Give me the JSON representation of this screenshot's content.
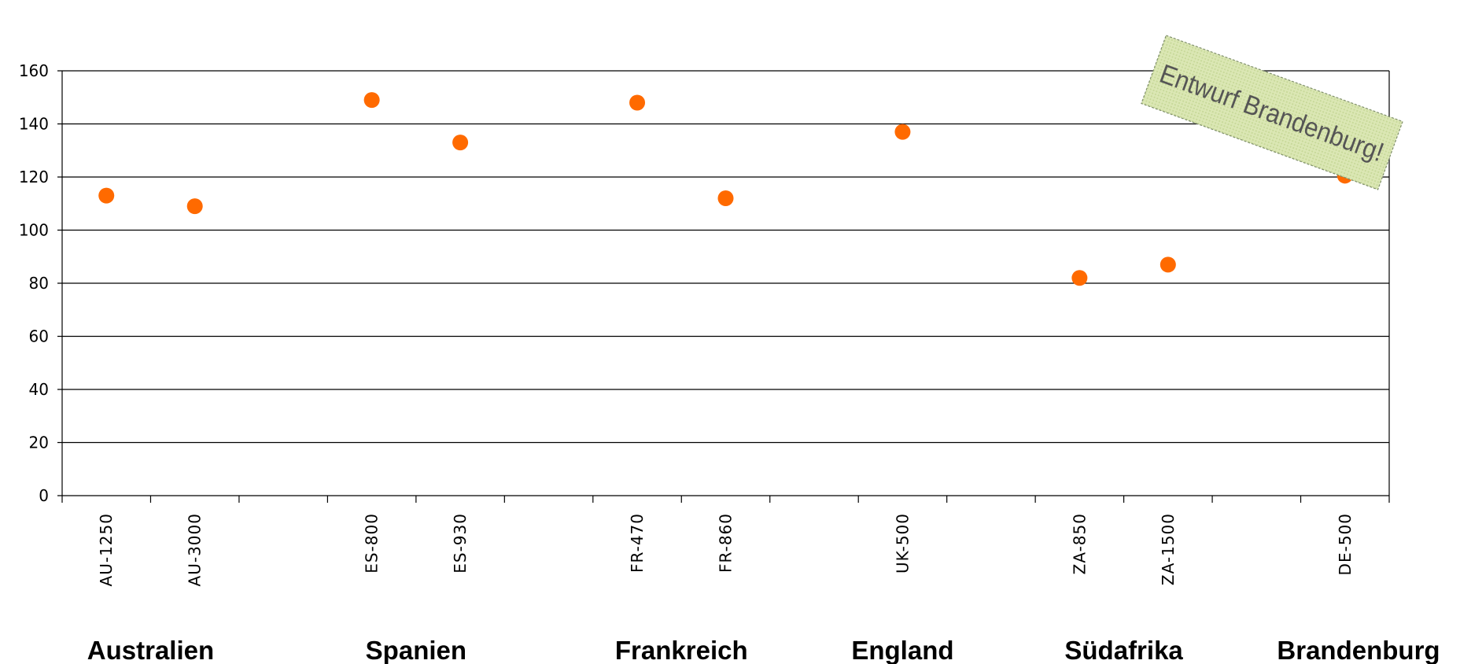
{
  "chart_data": {
    "type": "scatter",
    "categories": [
      {
        "label": "AU-1250",
        "value": 113
      },
      {
        "label": "AU-3000",
        "value": 109
      },
      {
        "label": "ES-800",
        "value": 149
      },
      {
        "label": "ES-930",
        "value": 133
      },
      {
        "label": "FR-470",
        "value": 148
      },
      {
        "label": "FR-860",
        "value": 112
      },
      {
        "label": "UK-500",
        "value": 137
      },
      {
        "label": "ZA-850",
        "value": 82
      },
      {
        "label": "ZA-1500",
        "value": 87
      },
      {
        "label": "DE-500",
        "value": 120.5
      }
    ],
    "groups": [
      {
        "label": "Australien"
      },
      {
        "label": "Spanien"
      },
      {
        "label": "Frankreich"
      },
      {
        "label": "England"
      },
      {
        "label": "Südafrika"
      },
      {
        "label": "Brandenburg"
      }
    ],
    "y_ticks": [
      "0",
      "20",
      "40",
      "60",
      "80",
      "100",
      "120",
      "140",
      "160"
    ],
    "ylim": [
      0,
      160
    ],
    "grid": true,
    "marker_color": "#ff6a00",
    "title": "",
    "xlabel": "",
    "ylabel": ""
  },
  "stamp": {
    "text": "Entwurf Brandenburg!",
    "fill_color": "#d4e2a6"
  }
}
